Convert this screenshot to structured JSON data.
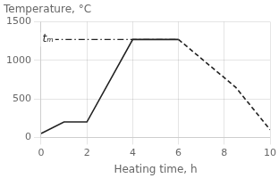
{
  "chart_data": {
    "type": "line",
    "title": "Temperature, °C",
    "xlabel": "Heating time, h",
    "xlim": [
      0,
      10
    ],
    "ylim": [
      0,
      1500
    ],
    "xticks": [
      0,
      2,
      4,
      6,
      8,
      10
    ],
    "yticks": [
      0,
      500,
      1000,
      1500
    ],
    "grid": true,
    "series": [
      {
        "x": [
          0,
          1,
          2,
          4,
          6
        ],
        "values": [
          50,
          200,
          200,
          1270,
          1270
        ],
        "color": "#222222",
        "line_style": "solid"
      },
      {
        "x": [
          6,
          8.5,
          10
        ],
        "values": [
          1270,
          650,
          100
        ],
        "color": "#222222",
        "line_style": "dashed"
      },
      {
        "x": [
          0.5,
          6.0
        ],
        "values": [
          1270,
          1270
        ],
        "color": "#222222",
        "line_style": "dashdot"
      }
    ],
    "annotations": [
      {
        "text": "tₘ",
        "x": 0.3,
        "y": 1270
      }
    ]
  }
}
